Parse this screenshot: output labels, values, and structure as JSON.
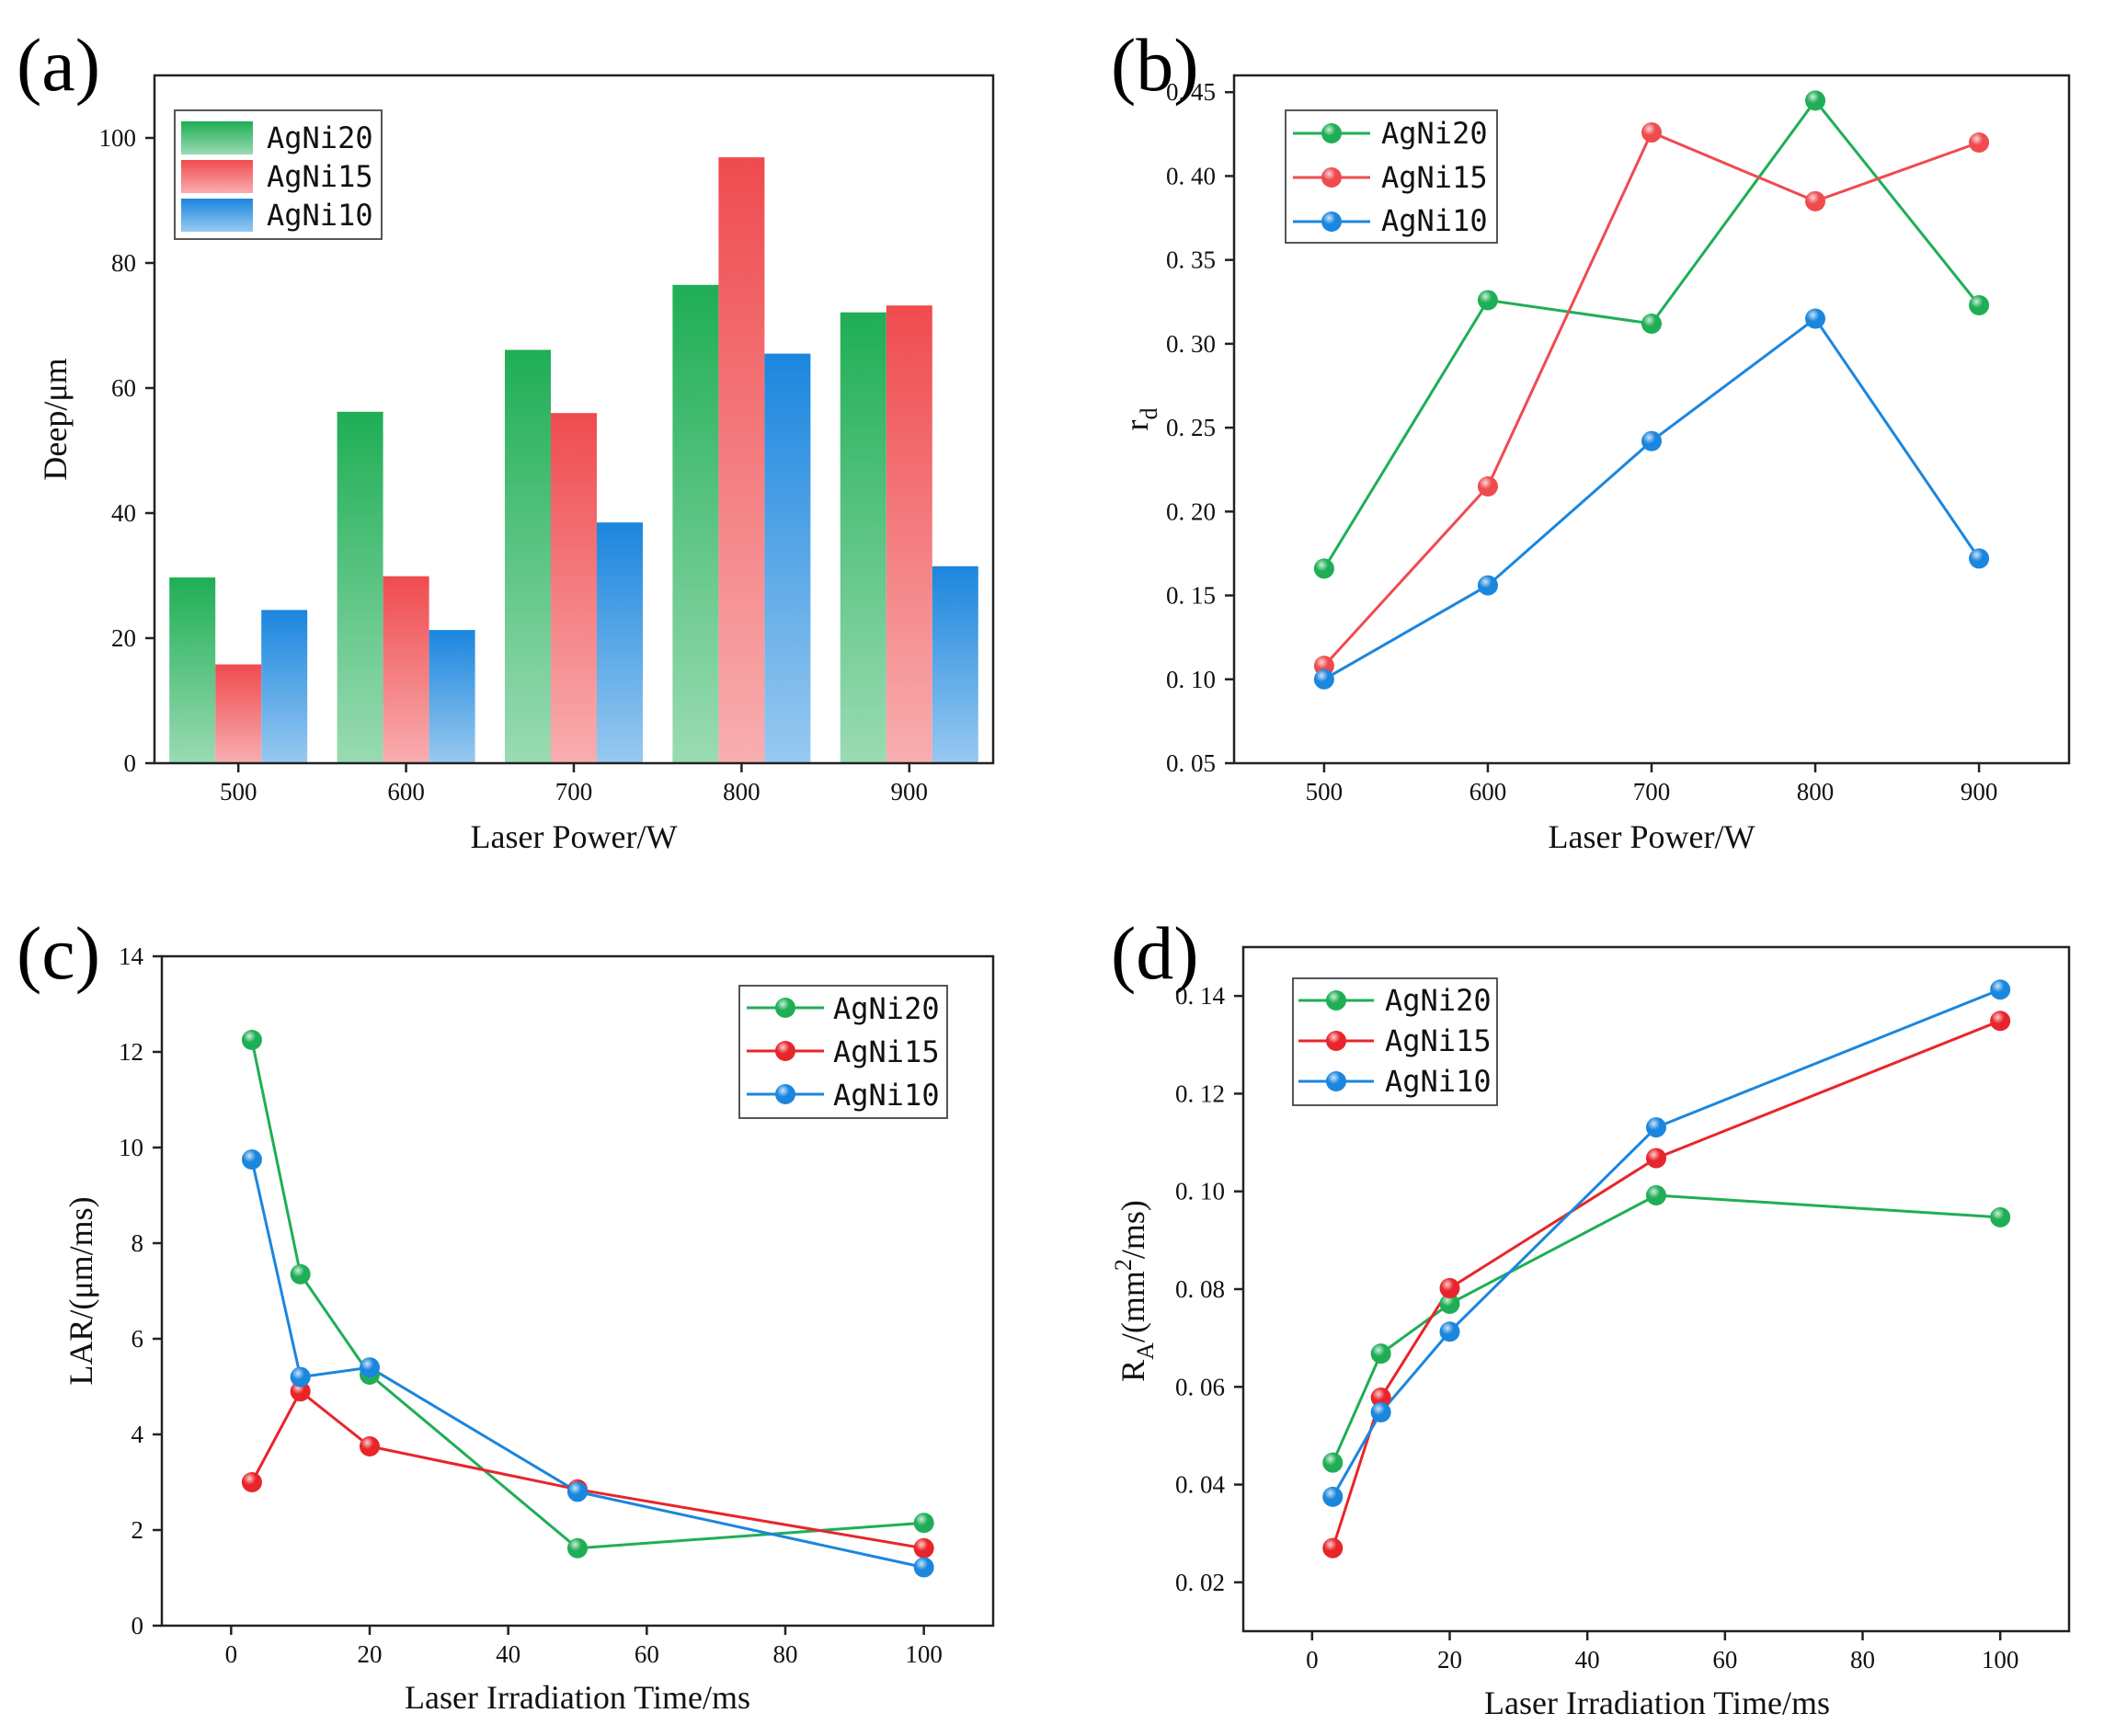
{
  "chart_data": [
    {
      "panel": "(a)",
      "type": "bar",
      "xlabel": "Laser Power/W",
      "ylabel": "Deep/μm",
      "categories": [
        "500",
        "600",
        "700",
        "800",
        "900"
      ],
      "ylim": [
        0,
        110
      ],
      "yticks": [
        0,
        20,
        40,
        60,
        80,
        100
      ],
      "legend_position": "top-left",
      "grid": false,
      "series": [
        {
          "name": "AgNi20",
          "color": "#1fae55",
          "values": [
            29.7,
            56.2,
            66.1,
            76.5,
            72.1
          ]
        },
        {
          "name": "AgNi15",
          "color": "#ef4b4f",
          "values": [
            15.8,
            29.9,
            56.0,
            96.9,
            73.2
          ]
        },
        {
          "name": "AgNi10",
          "color": "#1b86de",
          "values": [
            24.5,
            21.3,
            38.5,
            65.5,
            31.5
          ]
        }
      ]
    },
    {
      "panel": "(b)",
      "type": "line",
      "xlabel": "Laser Power/W",
      "ylabel": "r",
      "ylabel_sub": "d",
      "x": [
        500,
        600,
        700,
        800,
        900
      ],
      "xlim": [
        445,
        955
      ],
      "xticks": [
        500,
        600,
        700,
        800,
        900
      ],
      "ylim": [
        0.05,
        0.46
      ],
      "yticks": [
        0.05,
        0.1,
        0.15,
        0.2,
        0.25,
        0.3,
        0.35,
        0.4,
        0.45
      ],
      "ytick_labels": [
        "0. 05",
        "0. 10",
        "0. 15",
        "0. 20",
        "0. 25",
        "0. 30",
        "0. 35",
        "0. 40",
        "0. 45"
      ],
      "legend_position": "top-left",
      "grid": false,
      "series": [
        {
          "name": "AgNi20",
          "color": "#1fae55",
          "values": [
            0.166,
            0.326,
            0.312,
            0.445,
            0.323
          ]
        },
        {
          "name": "AgNi15",
          "color": "#ef4b4f",
          "values": [
            0.108,
            0.215,
            0.426,
            0.385,
            0.42
          ]
        },
        {
          "name": "AgNi10",
          "color": "#1b86de",
          "values": [
            0.1,
            0.156,
            0.242,
            0.315,
            0.172
          ]
        }
      ]
    },
    {
      "panel": "(c)",
      "type": "line",
      "xlabel": "Laser Irradiation Time/ms",
      "ylabel": "LAR/(μm/ms)",
      "x": [
        3,
        10,
        20,
        50,
        100
      ],
      "xlim": [
        -10,
        110
      ],
      "xticks": [
        0,
        20,
        40,
        60,
        80,
        100
      ],
      "ylim": [
        0,
        14
      ],
      "yticks": [
        0,
        2,
        4,
        6,
        8,
        10,
        12,
        14
      ],
      "legend_position": "top-right",
      "grid": false,
      "series": [
        {
          "name": "AgNi20",
          "color": "#1fae55",
          "values": [
            12.25,
            7.35,
            5.25,
            1.62,
            2.15
          ]
        },
        {
          "name": "AgNi15",
          "color": "#e8252b",
          "values": [
            3.0,
            4.9,
            3.75,
            2.85,
            1.62
          ]
        },
        {
          "name": "AgNi10",
          "color": "#1b86de",
          "values": [
            9.75,
            5.2,
            5.4,
            2.8,
            1.22
          ]
        }
      ]
    },
    {
      "panel": "(d)",
      "type": "line",
      "xlabel": "Laser Irradiation Time/ms",
      "ylabel": "R",
      "ylabel_sub": "A",
      "ylabel_tail": "/(mm",
      "ylabel_sup": "2",
      "ylabel_end": "/ms)",
      "x": [
        3,
        10,
        20,
        50,
        100
      ],
      "xlim": [
        -10,
        110
      ],
      "xticks": [
        0,
        20,
        40,
        60,
        80,
        100
      ],
      "ylim": [
        0.01,
        0.15
      ],
      "yticks": [
        0.02,
        0.04,
        0.06,
        0.08,
        0.1,
        0.12,
        0.14
      ],
      "ytick_labels": [
        "0. 02",
        "0. 04",
        "0. 06",
        "0. 08",
        "0. 10",
        "0. 12",
        "0. 14"
      ],
      "legend_position": "top-left",
      "grid": false,
      "series": [
        {
          "name": "AgNi20",
          "color": "#1fae55",
          "values": [
            0.0445,
            0.0668,
            0.077,
            0.0992,
            0.0947
          ]
        },
        {
          "name": "AgNi15",
          "color": "#e8252b",
          "values": [
            0.027,
            0.0578,
            0.0802,
            0.1068,
            0.1349
          ]
        },
        {
          "name": "AgNi10",
          "color": "#1b86de",
          "values": [
            0.0375,
            0.0548,
            0.0713,
            0.1131,
            0.1413
          ]
        }
      ]
    }
  ]
}
